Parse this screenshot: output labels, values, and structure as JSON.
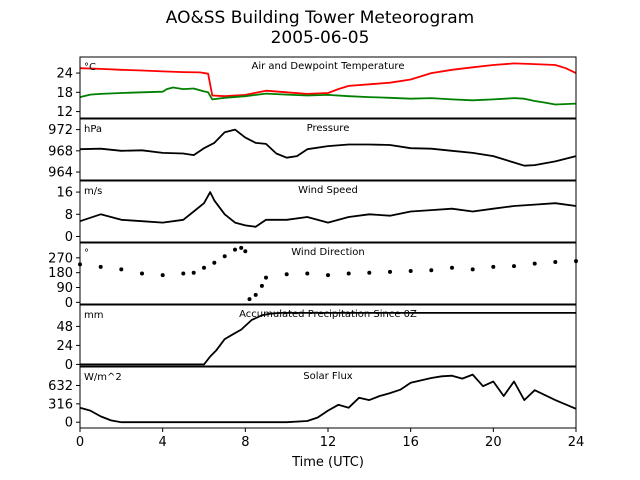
{
  "title_line1": "AO&SS Building Tower Meteorogram",
  "title_line2": "2005-06-05",
  "xlabel": "Time (UTC)",
  "xticks": [
    "0",
    "4",
    "8",
    "12",
    "16",
    "20",
    "24"
  ],
  "chart_data": [
    {
      "type": "line",
      "title": "Air and Dewpoint Temperature",
      "unit": "°C",
      "ylim": [
        10,
        29
      ],
      "yticks": [
        12,
        18,
        24
      ],
      "xlim": [
        0,
        24
      ],
      "series": [
        {
          "color": "#ff0000",
          "x": [
            0,
            1,
            2,
            3,
            4,
            5,
            5.8,
            6.2,
            6.4,
            7,
            8,
            9,
            10,
            11,
            12,
            12.5,
            13,
            14,
            15,
            16,
            17,
            18,
            19,
            20,
            21,
            22,
            23,
            23.5,
            24
          ],
          "y": [
            25.5,
            25.3,
            25,
            24.8,
            24.5,
            24.3,
            24.2,
            23.8,
            17,
            16.8,
            17.2,
            18.5,
            18,
            17.5,
            17.8,
            19,
            20,
            20.5,
            21,
            22,
            24,
            25,
            25.8,
            26.5,
            27,
            26.8,
            26.5,
            25.5,
            24
          ]
        },
        {
          "color": "#008000",
          "x": [
            0,
            0.5,
            1,
            2,
            3,
            4,
            4.2,
            4.5,
            5,
            5.5,
            6,
            6.2,
            6.4,
            7,
            8,
            9,
            10,
            11,
            12,
            13,
            14,
            15,
            16,
            17,
            18,
            19,
            20,
            21,
            21.5,
            22,
            22.5,
            23,
            24
          ],
          "y": [
            16.5,
            17.3,
            17.5,
            17.8,
            18,
            18.2,
            19,
            19.5,
            19,
            19.2,
            18.3,
            18,
            15.8,
            16.3,
            16.8,
            17.6,
            17.3,
            17,
            17.2,
            16.8,
            16.5,
            16.3,
            16,
            16.2,
            15.8,
            15.5,
            15.8,
            16.2,
            16,
            15.3,
            14.8,
            14.2,
            14.5
          ]
        }
      ]
    },
    {
      "type": "line",
      "title": "Pressure",
      "unit": "hPa",
      "ylim": [
        962.5,
        974
      ],
      "yticks": [
        964,
        968,
        972
      ],
      "xlim": [
        0,
        24
      ],
      "series": [
        {
          "color": "#000000",
          "x": [
            0,
            1,
            2,
            3,
            4,
            5,
            5.5,
            6,
            6.5,
            7,
            7.5,
            8,
            8.5,
            9,
            9.5,
            10,
            10.5,
            11,
            12,
            13,
            14,
            15,
            16,
            17,
            18,
            19,
            20,
            21,
            21.5,
            22,
            23,
            24
          ],
          "y": [
            968.3,
            968.4,
            968,
            968.1,
            967.6,
            967.5,
            967.2,
            968.5,
            969.5,
            971.5,
            972,
            970.5,
            969.5,
            969.3,
            967.5,
            966.7,
            967,
            968.3,
            968.9,
            969.2,
            969.2,
            969.1,
            968.5,
            968.4,
            968,
            967.6,
            967,
            965.8,
            965.2,
            965.3,
            966,
            967
          ]
        }
      ]
    },
    {
      "type": "line",
      "title": "Wind Speed",
      "unit": "m/s",
      "ylim": [
        -2,
        20
      ],
      "yticks": [
        0,
        8,
        16
      ],
      "xlim": [
        0,
        24
      ],
      "series": [
        {
          "color": "#000000",
          "x": [
            0,
            1,
            2,
            3,
            4,
            5,
            5.5,
            6,
            6.3,
            6.5,
            7,
            7.5,
            8,
            8.5,
            9,
            10,
            11,
            12,
            13,
            14,
            15,
            16,
            17,
            18,
            19,
            20,
            21,
            22,
            23,
            24
          ],
          "y": [
            5.5,
            8,
            6,
            5.5,
            5,
            6,
            9,
            12,
            16,
            13,
            8,
            5,
            4,
            3.5,
            6,
            6,
            7,
            5,
            7,
            8,
            7.5,
            9,
            9.5,
            10,
            9,
            10,
            11,
            11.5,
            12,
            11
          ]
        }
      ]
    },
    {
      "type": "scatter",
      "title": "Wind Direction",
      "unit": "°",
      "ylim": [
        -10,
        360
      ],
      "yticks": [
        0,
        90,
        180,
        270
      ],
      "xlim": [
        0,
        24
      ],
      "series": [
        {
          "color": "#000000",
          "x": [
            0,
            1,
            2,
            3,
            4,
            5,
            5.5,
            6,
            6.5,
            7,
            7.5,
            7.8,
            8,
            8.2,
            8.5,
            8.8,
            9,
            10,
            11,
            12,
            13,
            14,
            15,
            16,
            17,
            18,
            19,
            20,
            21,
            22,
            23,
            24
          ],
          "y": [
            230,
            215,
            200,
            175,
            165,
            175,
            180,
            210,
            240,
            280,
            320,
            330,
            310,
            20,
            45,
            100,
            150,
            170,
            175,
            165,
            175,
            180,
            185,
            190,
            195,
            210,
            200,
            215,
            220,
            235,
            245,
            250
          ]
        }
      ]
    },
    {
      "type": "line",
      "title": "Accumulated Precipitation Since 0Z",
      "unit": "mm",
      "ylim": [
        -2,
        75
      ],
      "yticks": [
        0,
        24,
        48
      ],
      "xlim": [
        0,
        24
      ],
      "series": [
        {
          "color": "#000000",
          "x": [
            0,
            5.5,
            6,
            6.3,
            6.6,
            7,
            7.4,
            7.8,
            8.3,
            8.8,
            9.2,
            9.7,
            10.3,
            24
          ],
          "y": [
            0,
            0,
            0,
            10,
            18,
            32,
            38,
            44,
            56,
            62,
            64,
            65,
            65,
            65
          ]
        }
      ]
    },
    {
      "type": "line",
      "title": "Solar Flux",
      "unit": "W/m^2",
      "ylim": [
        -100,
        950
      ],
      "yticks": [
        0,
        316,
        632
      ],
      "xlim": [
        0,
        24
      ],
      "series": [
        {
          "color": "#000000",
          "x": [
            0,
            0.5,
            1,
            1.5,
            2,
            3,
            4,
            6,
            8,
            10,
            11,
            11.5,
            12,
            12.5,
            13,
            13.5,
            14,
            14.5,
            15,
            15.5,
            16,
            16.5,
            17,
            17.5,
            18,
            18.5,
            19,
            19.5,
            20,
            20.5,
            21,
            21.5,
            22,
            23,
            24
          ],
          "y": [
            250,
            200,
            100,
            30,
            0,
            0,
            0,
            0,
            0,
            0,
            20,
            80,
            200,
            300,
            250,
            420,
            380,
            450,
            500,
            560,
            680,
            720,
            760,
            790,
            800,
            750,
            820,
            620,
            700,
            450,
            700,
            380,
            550,
            380,
            230
          ]
        }
      ]
    }
  ]
}
